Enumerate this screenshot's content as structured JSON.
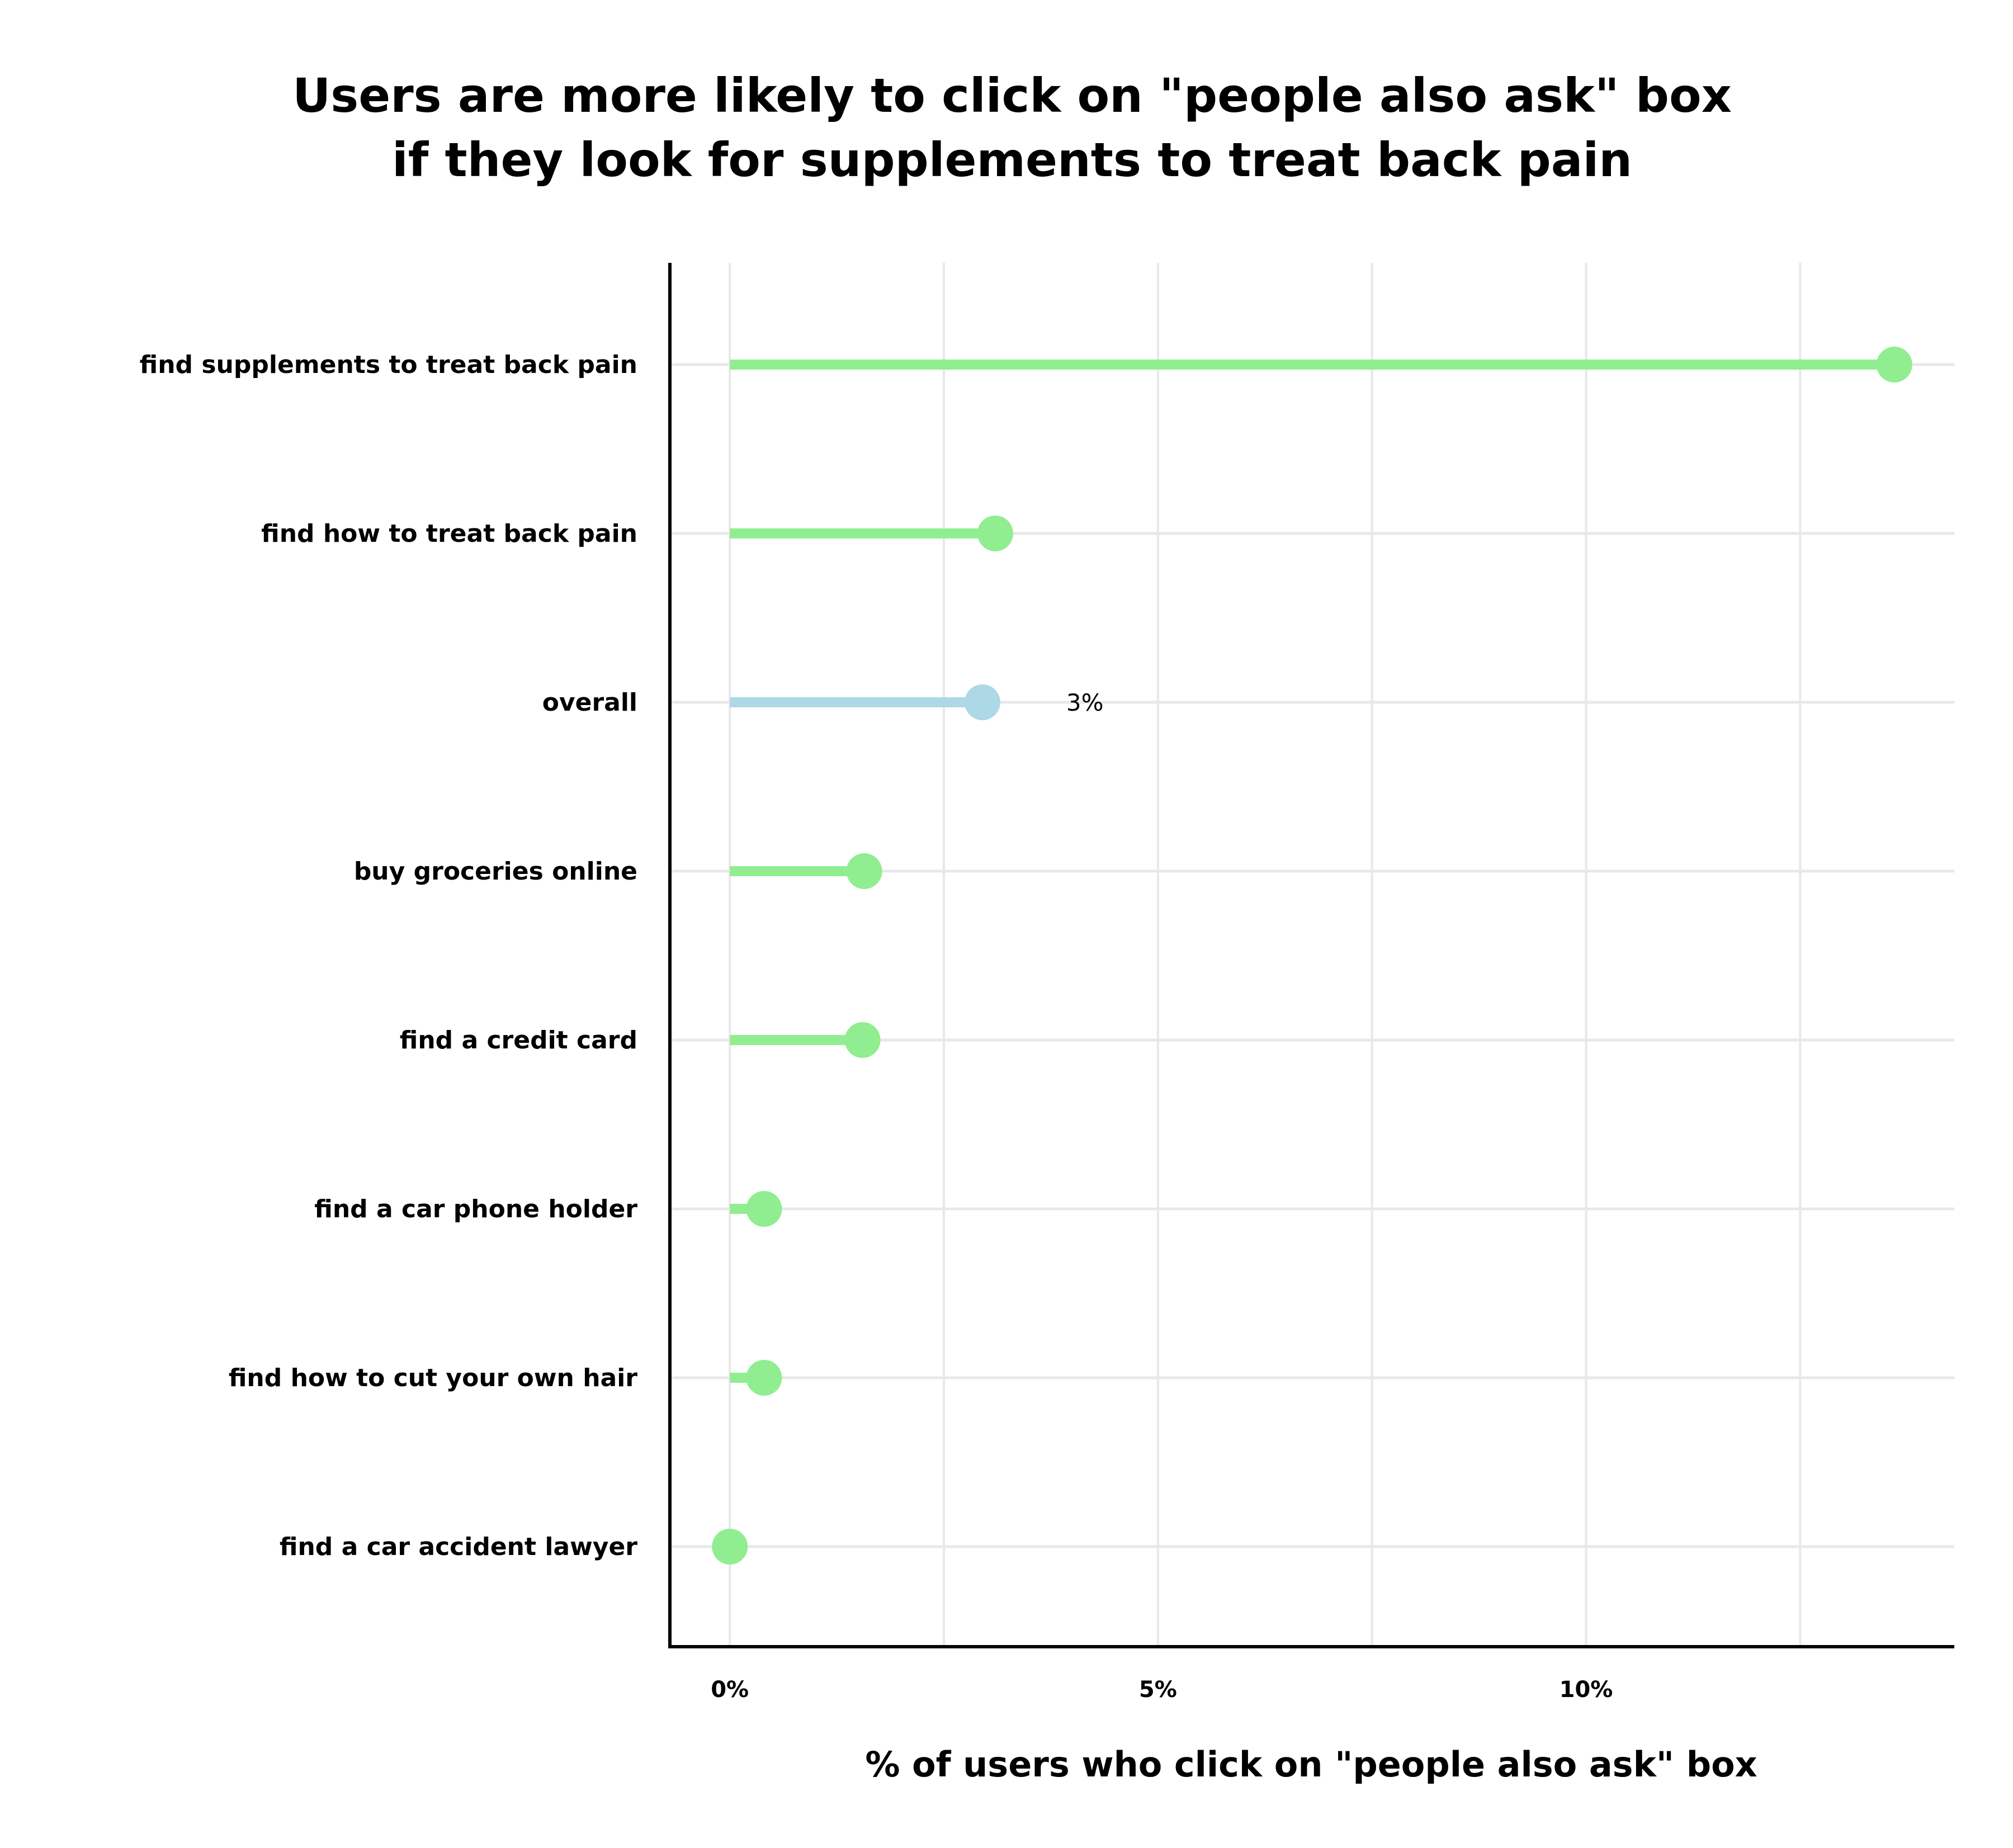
{
  "chart_data": {
    "type": "lollipop",
    "title_lines": [
      "Users are more likely to click on \"people also ask\" box",
      "if they look for supplements to treat back pain"
    ],
    "xlabel": "% of users who click on \"people also ask\" box",
    "ylabel": "",
    "xlim": [
      -0.7,
      14.3
    ],
    "x_ticks": [
      0,
      5,
      10
    ],
    "x_tick_labels": [
      "0%",
      "5%",
      "10%"
    ],
    "grid_x": [
      0,
      2.5,
      5,
      7.5,
      10,
      12.5
    ],
    "grid": true,
    "categories": [
      "find supplements to treat back pain",
      "find how to treat back pain",
      "overall",
      "buy groceries online",
      "find a credit card",
      "find a car phone holder",
      "find how to cut your own hair",
      "find a car accident lawyer"
    ],
    "values": [
      13.6,
      3.1,
      2.95,
      1.57,
      1.55,
      0.4,
      0.4,
      0.0
    ],
    "highlight_index": 2,
    "annotations": [
      {
        "category": "overall",
        "text": "3%"
      }
    ],
    "colors": {
      "default": "#90EE90",
      "highlight": "#ADD8E6",
      "grid": "#e8e8e8",
      "axis": "#000000"
    }
  }
}
